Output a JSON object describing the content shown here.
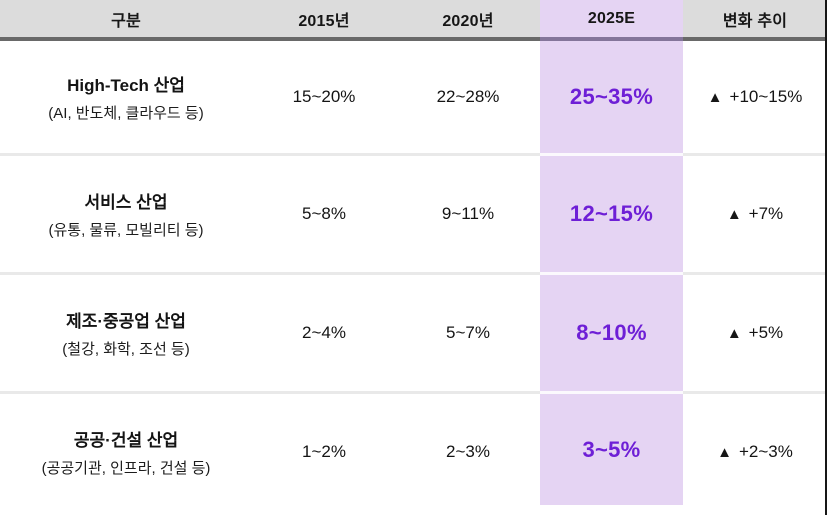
{
  "chart_data": {
    "type": "table",
    "columns": [
      "구분",
      "2015년",
      "2020년",
      "2025E",
      "변화 추이"
    ],
    "highlight_column": "2025E",
    "rows": [
      {
        "category": "High-Tech 산업",
        "category_note": "(AI, 반도체, 클라우드 등)",
        "y2015": "15~20%",
        "y2020": "22~28%",
        "y2025e": "25~35%",
        "trend_icon": "▲",
        "trend_value": "+10~15%"
      },
      {
        "category": "서비스 산업",
        "category_note": "(유통, 물류, 모빌리티 등)",
        "y2015": "5~8%",
        "y2020": "9~11%",
        "y2025e": "12~15%",
        "trend_icon": "▲",
        "trend_value": "+7%"
      },
      {
        "category": "제조·중공업 산업",
        "category_note": "(철강, 화학, 조선 등)",
        "y2015": "2~4%",
        "y2020": "5~7%",
        "y2025e": "8~10%",
        "trend_icon": "▲",
        "trend_value": "+5%"
      },
      {
        "category": "공공·건설 산업",
        "category_note": "(공공기관, 인프라, 건설 등)",
        "y2015": "1~2%",
        "y2020": "2~3%",
        "y2025e": "3~5%",
        "trend_icon": "▲",
        "trend_value": "+2~3%"
      }
    ]
  },
  "colors": {
    "header_bg": "#dcdcdc",
    "highlight_header_bg": "#e1d0ee",
    "highlight_cell_bg": "#e5d4f3",
    "highlight_text": "#6e1fd6",
    "header_divider": "#696969",
    "highlight_header_divider": "#84759a",
    "row_divider": "#e9e9e9",
    "highlight_row_divider": "#fbf9fd",
    "right_edge": "#161616"
  }
}
